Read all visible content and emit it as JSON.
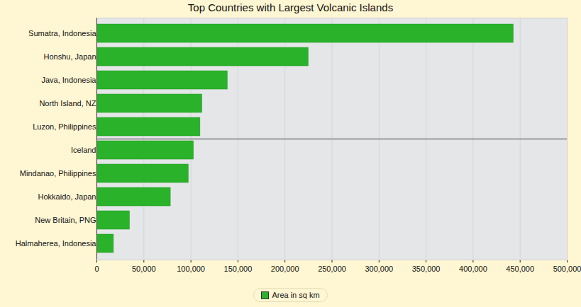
{
  "chart_data": {
    "type": "bar",
    "title": "Top Countries with Largest Volcanic Islands",
    "orientation": "horizontal",
    "categories": [
      "Sumatra, Indonesia",
      "Honshu, Japan",
      "Java, Indonesia",
      "North Island, NZ",
      "Luzon, Philippines",
      "Iceland",
      "Mindanao, Philippines",
      "Hokkaido, Japan",
      "New Britain, PNG",
      "Halmaherea, Indonesia"
    ],
    "series": [
      {
        "name": "Area in sq km",
        "color": "#2ab22a",
        "values": [
          443000,
          225000,
          139000,
          112000,
          110000,
          103000,
          97500,
          78500,
          35000,
          18000
        ]
      }
    ],
    "xlim": [
      0,
      500000
    ],
    "xticks": [
      {
        "value": 0,
        "label": "0"
      },
      {
        "value": 50000,
        "label": "50,000"
      },
      {
        "value": 100000,
        "label": "100,000"
      },
      {
        "value": 150000,
        "label": "150,000"
      },
      {
        "value": 200000,
        "label": "200,000"
      },
      {
        "value": 250000,
        "label": "250,000"
      },
      {
        "value": 300000,
        "label": "300,000"
      },
      {
        "value": 350000,
        "label": "350,000"
      },
      {
        "value": 400000,
        "label": "400,000"
      },
      {
        "value": 450000,
        "label": "450,000"
      },
      {
        "value": 500000,
        "label": "500,000"
      }
    ],
    "grid": true,
    "legend": "bottom"
  }
}
